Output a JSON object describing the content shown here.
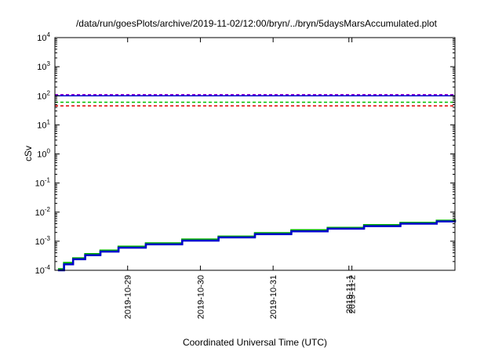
{
  "chart_data": {
    "type": "line",
    "title": "/data/run/goesPlots/archive/2019-11-02/12:00/bryn/../bryn/5daysMarsAccumulated.plot",
    "xlabel": "Coordinated Universal Time (UTC)",
    "ylabel": "cSv",
    "x_range": [
      "2019-10-28T00:00",
      "2019-11-02T12:00"
    ],
    "x_ticks": [
      "2019-10-29",
      "2019-10-30",
      "2019-10-31",
      "2019-11-1",
      "2019-11-2"
    ],
    "y_scale": "log",
    "ylim": [
      0.0001,
      10000
    ],
    "y_ticks": [
      {
        "base": "10",
        "exp": "-4"
      },
      {
        "base": "10",
        "exp": "-3"
      },
      {
        "base": "10",
        "exp": "-2"
      },
      {
        "base": "10",
        "exp": "-1"
      },
      {
        "base": "10",
        "exp": "0"
      },
      {
        "base": "10",
        "exp": "1"
      },
      {
        "base": "10",
        "exp": "2"
      },
      {
        "base": "10",
        "exp": "3"
      },
      {
        "base": "10",
        "exp": "4"
      }
    ],
    "grid": false,
    "legend": "none",
    "series": [
      {
        "style": "dashed",
        "color": "#9400d3",
        "x": [
          "2019-10-28T00:00",
          "2019-11-02T12:00"
        ],
        "y": [
          110,
          110
        ]
      },
      {
        "style": "dashed",
        "color": "#00c000",
        "x": [
          "2019-10-28T00:00",
          "2019-11-02T12:00"
        ],
        "y": [
          60,
          60
        ]
      },
      {
        "style": "dashed",
        "color": "#e00000",
        "x": [
          "2019-10-28T00:00",
          "2019-11-02T12:00"
        ],
        "y": [
          45,
          45
        ]
      },
      {
        "style": "solid",
        "color": "#00b000",
        "x": [
          "2019-10-28T01:00",
          "2019-10-28T03:00",
          "2019-10-28T06:00",
          "2019-10-28T10:00",
          "2019-10-28T15:00",
          "2019-10-28T21:00",
          "2019-10-29T06:00",
          "2019-10-29T18:00",
          "2019-10-30T06:00",
          "2019-10-30T18:00",
          "2019-10-31T06:00",
          "2019-10-31T18:00",
          "2019-11-01T06:00",
          "2019-11-01T18:00",
          "2019-11-02T06:00",
          "2019-11-02T12:00"
        ],
        "y": [
          0.00011,
          0.00018,
          0.00026,
          0.00036,
          0.00048,
          0.00065,
          0.00085,
          0.00115,
          0.00145,
          0.0019,
          0.0024,
          0.0029,
          0.0036,
          0.0043,
          0.0051,
          0.0057
        ]
      },
      {
        "style": "solid",
        "color": "#0000cc",
        "x": [
          "2019-10-28T01:00",
          "2019-10-28T03:00",
          "2019-10-28T06:00",
          "2019-10-28T10:00",
          "2019-10-28T15:00",
          "2019-10-28T21:00",
          "2019-10-29T06:00",
          "2019-10-29T18:00",
          "2019-10-30T06:00",
          "2019-10-30T18:00",
          "2019-10-31T06:00",
          "2019-10-31T18:00",
          "2019-11-01T06:00",
          "2019-11-01T18:00",
          "2019-11-02T06:00",
          "2019-11-02T12:00"
        ],
        "y": [
          0.0001,
          0.00016,
          0.00024,
          0.00033,
          0.00044,
          0.0006,
          0.00078,
          0.00105,
          0.00135,
          0.00175,
          0.0022,
          0.0027,
          0.0033,
          0.004,
          0.0048,
          0.0053
        ]
      },
      {
        "style": "solid",
        "color": "#0000cc",
        "x": [
          "2019-10-28T00:00",
          "2019-11-02T12:00"
        ],
        "y": [
          100,
          100
        ]
      }
    ]
  }
}
